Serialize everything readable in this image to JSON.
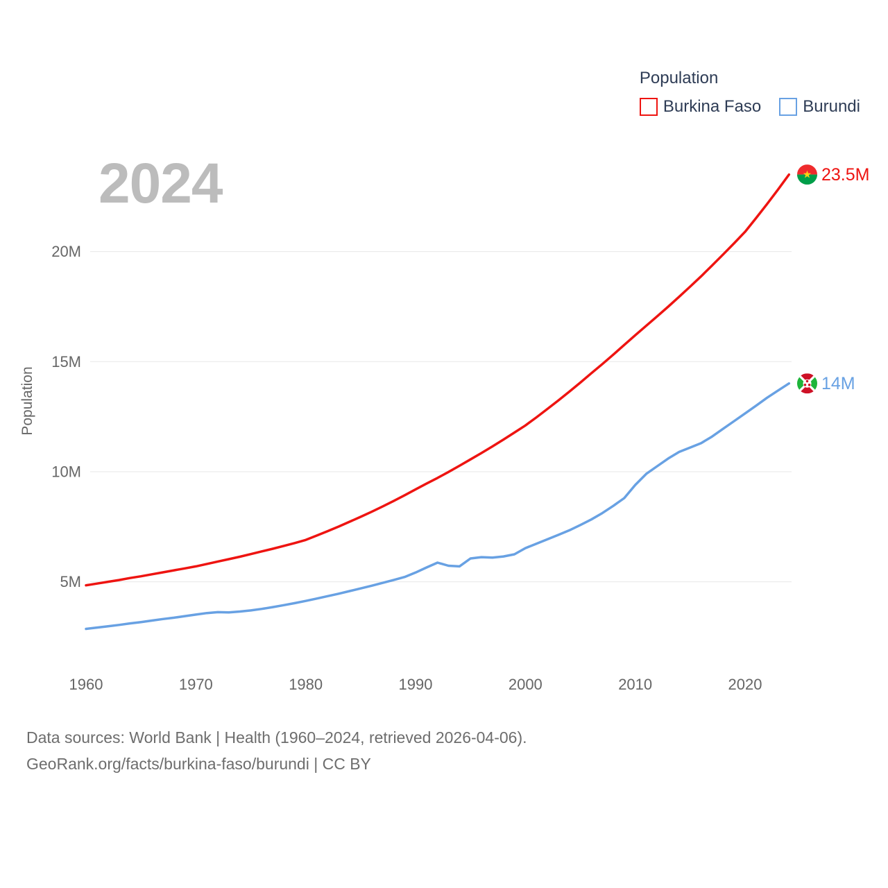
{
  "legend": {
    "title": "Population",
    "items": [
      {
        "label": "Burkina Faso",
        "color": "#ee1411"
      },
      {
        "label": "Burundi",
        "color": "#68a1e3"
      }
    ]
  },
  "watermark": "2024",
  "footer": {
    "line1": "Data sources: World Bank | Health (1960–2024, retrieved 2026-04-06).",
    "line2": "GeoRank.org/facts/burkina-faso/burundi | CC BY"
  },
  "colors": {
    "burkina_faso_line": "#ee1411",
    "burundi_line": "#68a1e3",
    "axis_text": "#666666",
    "gridline": "#e7e7e7",
    "legend_text": "#2e3c55",
    "watermark": "#bcbcbc",
    "footer_text": "#6d6d6d",
    "flag_burkina_red": "#EF2B2D",
    "flag_burkina_green": "#009E49",
    "flag_burkina_star": "#FCD116",
    "flag_burundi_red": "#CE1126",
    "flag_burundi_green": "#1EB53A"
  },
  "chart_data": {
    "type": "line",
    "title": "Population",
    "xlabel": "",
    "ylabel": "Population",
    "grid": true,
    "legend_position": "top-right",
    "ylim": [
      1,
      24.5
    ],
    "xticks": [
      1960,
      1970,
      1980,
      1990,
      2000,
      2010,
      2020
    ],
    "yticks": [
      {
        "label": "5M",
        "value": 5
      },
      {
        "label": "10M",
        "value": 10
      },
      {
        "label": "15M",
        "value": 15
      },
      {
        "label": "20M",
        "value": 20
      }
    ],
    "x": [
      1960,
      1961,
      1962,
      1963,
      1964,
      1965,
      1966,
      1967,
      1968,
      1969,
      1970,
      1971,
      1972,
      1973,
      1974,
      1975,
      1976,
      1977,
      1978,
      1979,
      1980,
      1981,
      1982,
      1983,
      1984,
      1985,
      1986,
      1987,
      1988,
      1989,
      1990,
      1991,
      1992,
      1993,
      1994,
      1995,
      1996,
      1997,
      1998,
      1999,
      2000,
      2001,
      2002,
      2003,
      2004,
      2005,
      2006,
      2007,
      2008,
      2009,
      2010,
      2011,
      2012,
      2013,
      2014,
      2015,
      2016,
      2017,
      2018,
      2019,
      2020,
      2021,
      2022,
      2023,
      2024
    ],
    "series": [
      {
        "name": "Burkina Faso",
        "color": "#ee1411",
        "end_label": "23.5M",
        "flag": "burkina-faso",
        "values": [
          4.84,
          4.92,
          5.0,
          5.08,
          5.17,
          5.25,
          5.34,
          5.43,
          5.52,
          5.61,
          5.7,
          5.81,
          5.92,
          6.03,
          6.14,
          6.26,
          6.38,
          6.5,
          6.63,
          6.76,
          6.9,
          7.1,
          7.3,
          7.51,
          7.73,
          7.95,
          8.18,
          8.42,
          8.67,
          8.93,
          9.2,
          9.46,
          9.72,
          9.99,
          10.27,
          10.56,
          10.85,
          11.15,
          11.46,
          11.78,
          12.1,
          12.47,
          12.85,
          13.24,
          13.64,
          14.05,
          14.47,
          14.89,
          15.32,
          15.76,
          16.2,
          16.63,
          17.06,
          17.5,
          17.95,
          18.41,
          18.88,
          19.37,
          19.87,
          20.38,
          20.9,
          21.52,
          22.16,
          22.82,
          23.5
        ]
      },
      {
        "name": "Burundi",
        "color": "#68a1e3",
        "end_label": "14M",
        "flag": "burundi",
        "values": [
          2.86,
          2.92,
          2.98,
          3.04,
          3.11,
          3.17,
          3.24,
          3.31,
          3.37,
          3.44,
          3.51,
          3.58,
          3.62,
          3.61,
          3.65,
          3.7,
          3.77,
          3.85,
          3.94,
          4.03,
          4.13,
          4.24,
          4.35,
          4.46,
          4.58,
          4.7,
          4.82,
          4.95,
          5.08,
          5.22,
          5.42,
          5.65,
          5.87,
          5.73,
          5.7,
          6.06,
          6.12,
          6.1,
          6.15,
          6.25,
          6.53,
          6.73,
          6.93,
          7.13,
          7.34,
          7.58,
          7.83,
          8.12,
          8.45,
          8.8,
          9.4,
          9.9,
          10.25,
          10.6,
          10.9,
          11.1,
          11.3,
          11.6,
          11.95,
          12.3,
          12.65,
          13.0,
          13.36,
          13.69,
          14.01
        ]
      }
    ]
  }
}
